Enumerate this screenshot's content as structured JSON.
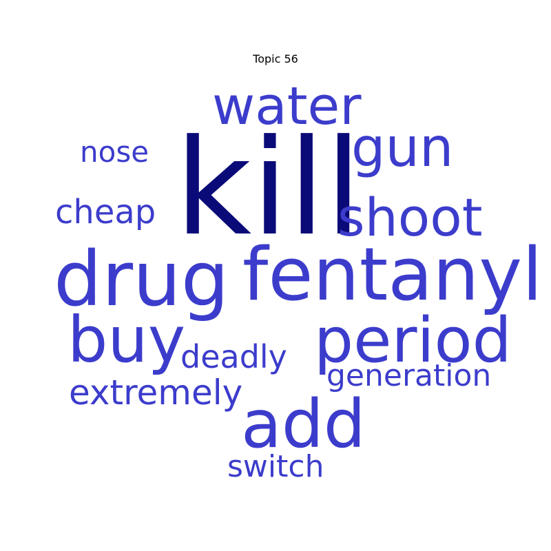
{
  "title": "Topic 56",
  "colors": {
    "primary_word": "#0a0a78",
    "secondary_word": "#3c3ccc"
  },
  "words": [
    {
      "text": "kill",
      "weight": 1.0,
      "color": "#0a0a78"
    },
    {
      "text": "drug",
      "weight": 0.85,
      "color": "#3c3ccc"
    },
    {
      "text": "fentanyl",
      "weight": 0.85,
      "color": "#3c3ccc"
    },
    {
      "text": "add",
      "weight": 0.8,
      "color": "#3c3ccc"
    },
    {
      "text": "period",
      "weight": 0.75,
      "color": "#3c3ccc"
    },
    {
      "text": "buy",
      "weight": 0.75,
      "color": "#3c3ccc"
    },
    {
      "text": "water",
      "weight": 0.7,
      "color": "#3c3ccc"
    },
    {
      "text": "gun",
      "weight": 0.7,
      "color": "#3c3ccc"
    },
    {
      "text": "shoot",
      "weight": 0.7,
      "color": "#3c3ccc"
    },
    {
      "text": "extremely",
      "weight": 0.45,
      "color": "#3c3ccc"
    },
    {
      "text": "cheap",
      "weight": 0.42,
      "color": "#3c3ccc"
    },
    {
      "text": "deadly",
      "weight": 0.4,
      "color": "#3c3ccc"
    },
    {
      "text": "generation",
      "weight": 0.4,
      "color": "#3c3ccc"
    },
    {
      "text": "switch",
      "weight": 0.38,
      "color": "#3c3ccc"
    },
    {
      "text": "nose",
      "weight": 0.35,
      "color": "#3c3ccc"
    }
  ]
}
